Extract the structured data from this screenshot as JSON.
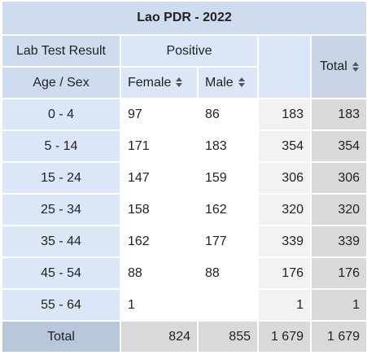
{
  "title": "Lao PDR - 2022",
  "header": {
    "dimension_label": "Lab Test Result",
    "group_label": "Positive",
    "row_dimension_label": "Age / Sex",
    "col_female": "Female",
    "col_male": "Male",
    "total_label": "Total"
  },
  "rows": [
    {
      "label": "0 - 4",
      "female": "97",
      "male": "86",
      "row_total": "183",
      "grand": "183"
    },
    {
      "label": "5 - 14",
      "female": "171",
      "male": "183",
      "row_total": "354",
      "grand": "354"
    },
    {
      "label": "15 - 24",
      "female": "147",
      "male": "159",
      "row_total": "306",
      "grand": "306"
    },
    {
      "label": "25 - 34",
      "female": "158",
      "male": "162",
      "row_total": "320",
      "grand": "320"
    },
    {
      "label": "35 - 44",
      "female": "162",
      "male": "177",
      "row_total": "339",
      "grand": "339"
    },
    {
      "label": "45 - 54",
      "female": "88",
      "male": "88",
      "row_total": "176",
      "grand": "176"
    },
    {
      "label": "55 - 64",
      "female": "1",
      "male": "",
      "row_total": "1",
      "grand": "1"
    }
  ],
  "totals": {
    "label": "Total",
    "female": "824",
    "male": "855",
    "row_total": "1 679",
    "grand": "1 679"
  },
  "icons": {
    "sort": "sort-icon"
  }
}
